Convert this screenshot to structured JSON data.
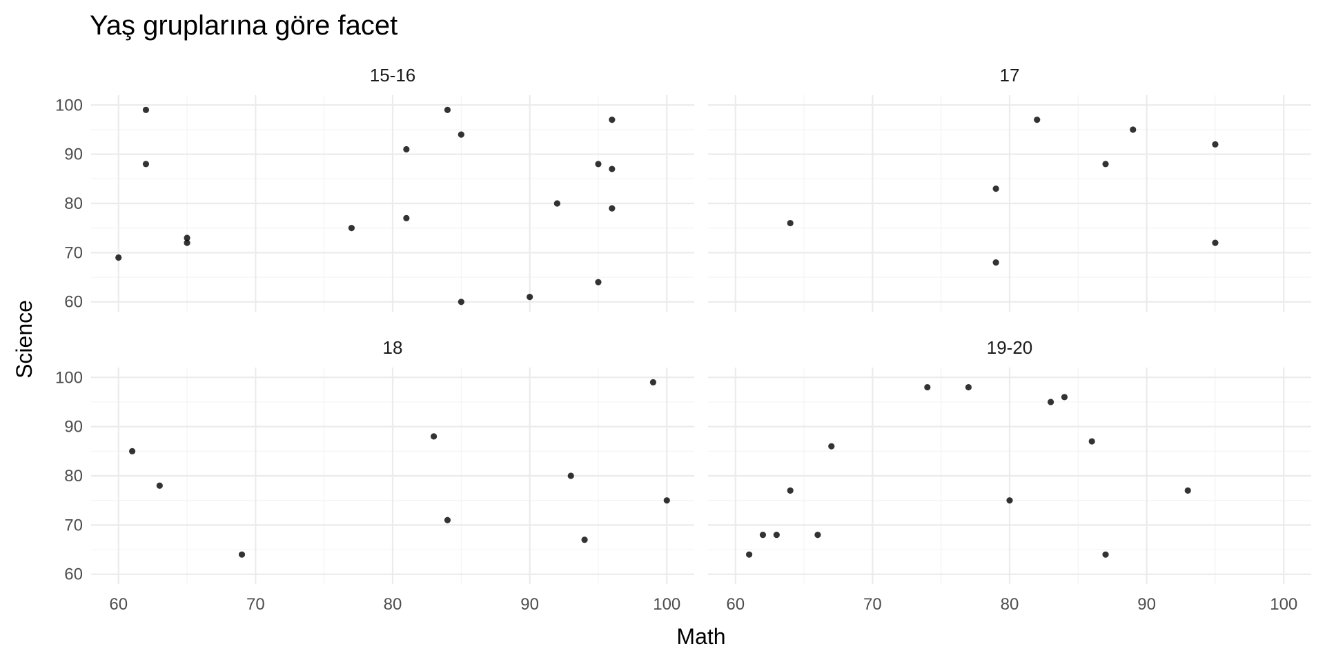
{
  "chart_data": {
    "type": "scatter",
    "title": "Yaş gruplarına göre facet",
    "xlabel": "Math",
    "ylabel": "Science",
    "xlim": [
      58,
      102
    ],
    "ylim": [
      58,
      102
    ],
    "x_ticks": [
      60,
      70,
      80,
      90,
      100
    ],
    "y_ticks": [
      60,
      70,
      80,
      90,
      100
    ],
    "grid": true,
    "colors": {
      "point": "#000000",
      "grid": "#ebebeb",
      "text": "#4d4d4d"
    },
    "facets": [
      {
        "label": "15-16",
        "points": [
          {
            "x": 60,
            "y": 69
          },
          {
            "x": 62,
            "y": 99
          },
          {
            "x": 62,
            "y": 88
          },
          {
            "x": 65,
            "y": 73
          },
          {
            "x": 65,
            "y": 72
          },
          {
            "x": 77,
            "y": 75
          },
          {
            "x": 81,
            "y": 91
          },
          {
            "x": 81,
            "y": 77
          },
          {
            "x": 84,
            "y": 99
          },
          {
            "x": 85,
            "y": 94
          },
          {
            "x": 85,
            "y": 60
          },
          {
            "x": 90,
            "y": 61
          },
          {
            "x": 92,
            "y": 80
          },
          {
            "x": 95,
            "y": 88
          },
          {
            "x": 95,
            "y": 64
          },
          {
            "x": 96,
            "y": 97
          },
          {
            "x": 96,
            "y": 87
          },
          {
            "x": 96,
            "y": 79
          }
        ]
      },
      {
        "label": "17",
        "points": [
          {
            "x": 64,
            "y": 76
          },
          {
            "x": 79,
            "y": 83
          },
          {
            "x": 79,
            "y": 68
          },
          {
            "x": 82,
            "y": 97
          },
          {
            "x": 87,
            "y": 88
          },
          {
            "x": 89,
            "y": 95
          },
          {
            "x": 95,
            "y": 92
          },
          {
            "x": 95,
            "y": 72
          }
        ]
      },
      {
        "label": "18",
        "points": [
          {
            "x": 61,
            "y": 85
          },
          {
            "x": 63,
            "y": 78
          },
          {
            "x": 69,
            "y": 64
          },
          {
            "x": 83,
            "y": 88
          },
          {
            "x": 84,
            "y": 71
          },
          {
            "x": 93,
            "y": 80
          },
          {
            "x": 94,
            "y": 67
          },
          {
            "x": 99,
            "y": 99
          },
          {
            "x": 100,
            "y": 75
          }
        ]
      },
      {
        "label": "19-20",
        "points": [
          {
            "x": 61,
            "y": 64
          },
          {
            "x": 62,
            "y": 68
          },
          {
            "x": 63,
            "y": 68
          },
          {
            "x": 64,
            "y": 77
          },
          {
            "x": 66,
            "y": 68
          },
          {
            "x": 67,
            "y": 86
          },
          {
            "x": 74,
            "y": 98
          },
          {
            "x": 77,
            "y": 98
          },
          {
            "x": 80,
            "y": 75
          },
          {
            "x": 83,
            "y": 95
          },
          {
            "x": 84,
            "y": 96
          },
          {
            "x": 86,
            "y": 87
          },
          {
            "x": 87,
            "y": 64
          },
          {
            "x": 93,
            "y": 77
          }
        ]
      }
    ]
  }
}
